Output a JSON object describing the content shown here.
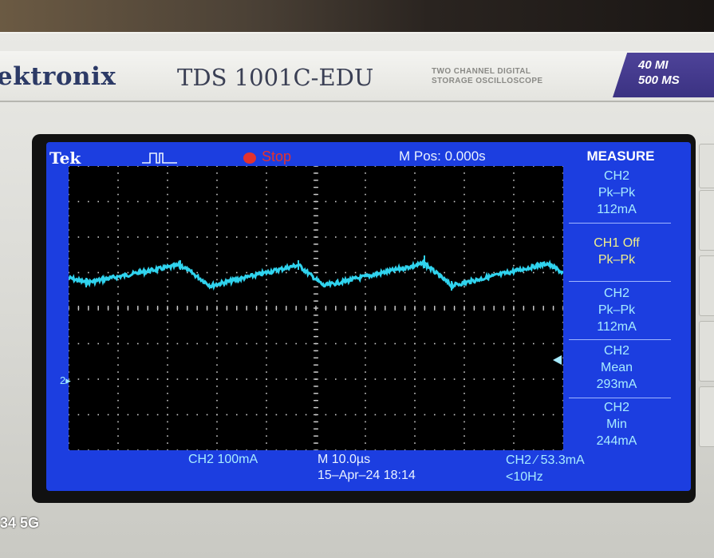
{
  "device": {
    "brand": "ektronix",
    "model": "TDS 1001C-EDU",
    "subtitle_line1": "TWO CHANNEL DIGITAL",
    "subtitle_line2": "STORAGE OSCILLOSCOPE",
    "spec_line1": "40 MI",
    "spec_line2": "500 MS"
  },
  "screen": {
    "logo": "Tek",
    "trigger_icon": "pulse-trigger-icon",
    "acq_state": "Stop",
    "m_pos": "M Pos: 0.000s",
    "measure_title": "MEASURE",
    "measurements": [
      {
        "line1": "CH2",
        "line2": "Pk–Pk",
        "line3": "112mA",
        "color": "#a7ecff"
      },
      {
        "line1": "CH1 Off",
        "line2": "Pk–Pk",
        "line3": "",
        "color": "#f1f08b"
      },
      {
        "line1": "CH2",
        "line2": "Pk–Pk",
        "line3": "112mA",
        "color": "#a7ecff"
      },
      {
        "line1": "CH2",
        "line2": "Mean",
        "line3": "293mA",
        "color": "#a7ecff"
      },
      {
        "line1": "CH2",
        "line2": "Min",
        "line3": "244mA",
        "color": "#a7ecff"
      }
    ],
    "ch2_scale": "CH2  100mA",
    "timebase": "M 10.0µs",
    "date_time": "15–Apr–24 18:14",
    "trigger_readout": "CH2 ∕ 53.3mA",
    "freq_readout": "<10Hz",
    "channel_marker": "2▸"
  },
  "phone_overlay": "34 5G",
  "colors": {
    "screen_bg": "#1c3ee0",
    "trace": "#30d3ee",
    "grid_dots": "#c9c9c9",
    "stop_red": "#e4322e"
  }
}
